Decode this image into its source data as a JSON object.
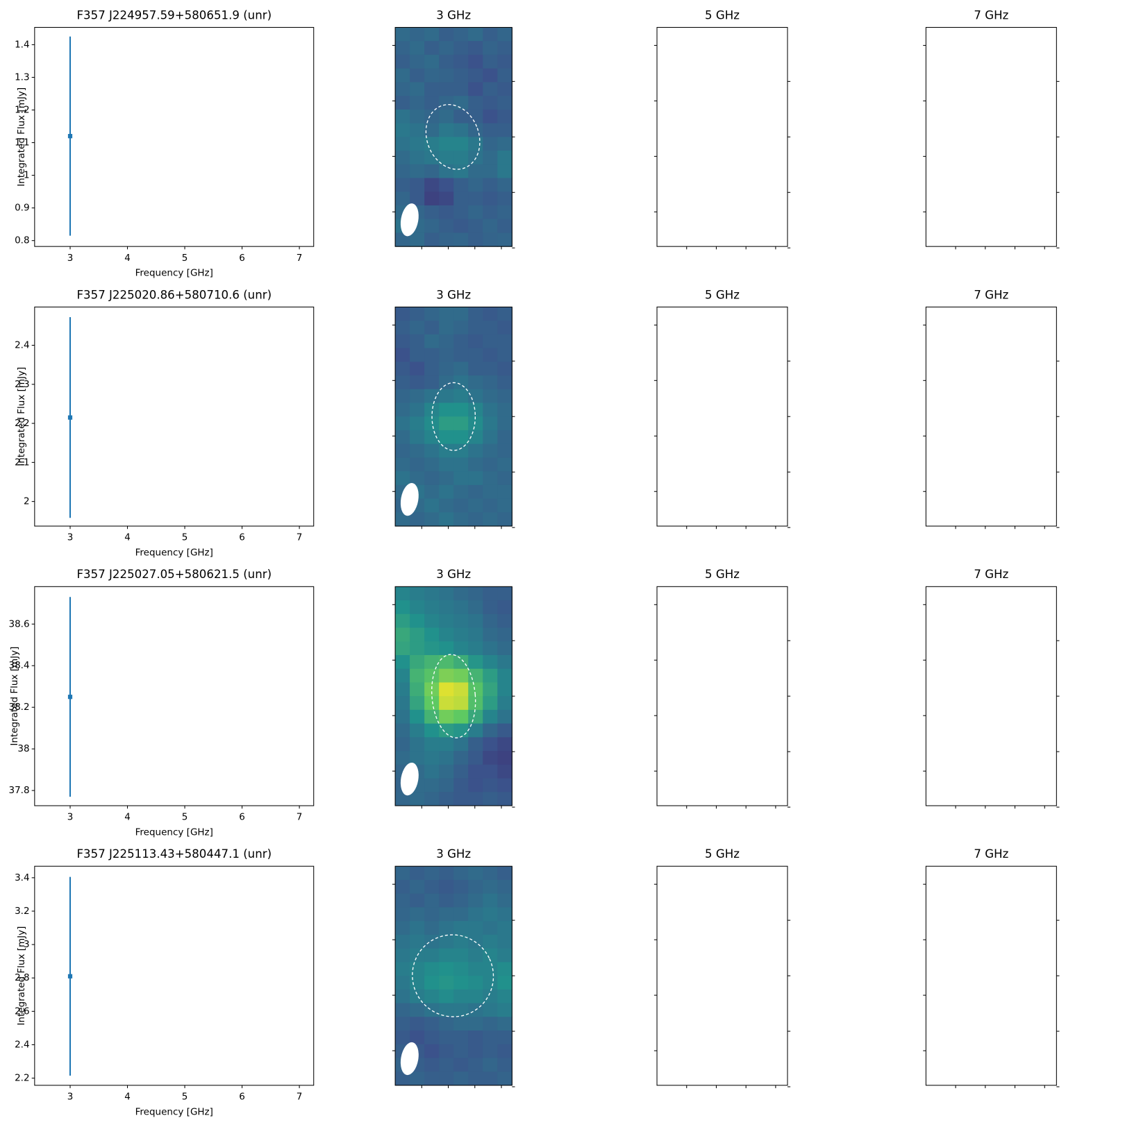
{
  "chart_data": [
    {
      "type": "errorbar",
      "title": "F357 J224957.59+580651.9 (unr)",
      "xlabel": "Frequency [GHz]",
      "ylabel": "Integrated Flux [mJy]",
      "color": "#1f77b4",
      "x": [
        3
      ],
      "values": [
        1.12
      ],
      "errors": [
        0.305
      ],
      "xlim": [
        2.38,
        7.25
      ],
      "ylim": [
        0.782,
        1.453
      ],
      "xticks": [
        3,
        4,
        5,
        6,
        7
      ],
      "yticks": [
        0.8,
        0.9,
        1.0,
        1.1,
        1.2,
        1.3,
        1.4
      ],
      "panels": [
        {
          "type": "heatmap",
          "title": "3 GHz",
          "image": [
            [
              0.35,
              0.33,
              0.35,
              0.3,
              0.32,
              0.35,
              0.3,
              0.33
            ],
            [
              0.32,
              0.35,
              0.3,
              0.33,
              0.3,
              0.28,
              0.32,
              0.3
            ],
            [
              0.3,
              0.33,
              0.35,
              0.3,
              0.28,
              0.25,
              0.3,
              0.28
            ],
            [
              0.35,
              0.3,
              0.33,
              0.32,
              0.3,
              0.28,
              0.25,
              0.3
            ],
            [
              0.33,
              0.35,
              0.3,
              0.3,
              0.3,
              0.25,
              0.3,
              0.28
            ],
            [
              0.3,
              0.33,
              0.3,
              0.33,
              0.35,
              0.3,
              0.28,
              0.3
            ],
            [
              0.38,
              0.35,
              0.33,
              0.35,
              0.3,
              0.3,
              0.25,
              0.28
            ],
            [
              0.4,
              0.38,
              0.35,
              0.4,
              0.38,
              0.33,
              0.3,
              0.3
            ],
            [
              0.38,
              0.4,
              0.42,
              0.45,
              0.45,
              0.4,
              0.33,
              0.35
            ],
            [
              0.35,
              0.38,
              0.4,
              0.42,
              0.42,
              0.38,
              0.35,
              0.4
            ],
            [
              0.33,
              0.35,
              0.33,
              0.38,
              0.4,
              0.35,
              0.35,
              0.4
            ],
            [
              0.3,
              0.28,
              0.22,
              0.25,
              0.3,
              0.33,
              0.3,
              0.33
            ],
            [
              0.33,
              0.28,
              0.2,
              0.22,
              0.3,
              0.3,
              0.28,
              0.3
            ],
            [
              0.35,
              0.33,
              0.3,
              0.28,
              0.3,
              0.33,
              0.3,
              0.32
            ],
            [
              0.38,
              0.35,
              0.33,
              0.3,
              0.28,
              0.3,
              0.33,
              0.3
            ],
            [
              0.33,
              0.35,
              0.3,
              0.32,
              0.33,
              0.3,
              0.32,
              0.33
            ]
          ]
        },
        {
          "type": "empty",
          "title": "5 GHz"
        },
        {
          "type": "empty",
          "title": "7 GHz"
        }
      ]
    },
    {
      "type": "errorbar",
      "title": "F357 J225020.86+580710.6 (unr)",
      "xlabel": "Frequency [GHz]",
      "ylabel": "Integrated Flux [mJy]",
      "color": "#1f77b4",
      "x": [
        3
      ],
      "values": [
        2.215
      ],
      "errors": [
        0.257
      ],
      "xlim": [
        2.38,
        7.25
      ],
      "ylim": [
        1.937,
        2.498
      ],
      "xticks": [
        3,
        4,
        5,
        6,
        7
      ],
      "yticks": [
        2.0,
        2.1,
        2.2,
        2.3,
        2.4
      ],
      "panels": [
        {
          "type": "heatmap",
          "title": "3 GHz",
          "image": [
            [
              0.28,
              0.3,
              0.33,
              0.35,
              0.35,
              0.3,
              0.28,
              0.3
            ],
            [
              0.3,
              0.33,
              0.3,
              0.35,
              0.33,
              0.3,
              0.3,
              0.28
            ],
            [
              0.28,
              0.3,
              0.35,
              0.33,
              0.3,
              0.28,
              0.3,
              0.3
            ],
            [
              0.25,
              0.3,
              0.3,
              0.32,
              0.3,
              0.3,
              0.28,
              0.3
            ],
            [
              0.28,
              0.25,
              0.3,
              0.33,
              0.35,
              0.3,
              0.3,
              0.28
            ],
            [
              0.3,
              0.28,
              0.3,
              0.35,
              0.38,
              0.35,
              0.33,
              0.3
            ],
            [
              0.33,
              0.35,
              0.38,
              0.4,
              0.42,
              0.38,
              0.35,
              0.33
            ],
            [
              0.35,
              0.38,
              0.45,
              0.5,
              0.5,
              0.45,
              0.38,
              0.35
            ],
            [
              0.38,
              0.42,
              0.48,
              0.55,
              0.55,
              0.48,
              0.4,
              0.35
            ],
            [
              0.35,
              0.4,
              0.45,
              0.5,
              0.5,
              0.45,
              0.38,
              0.33
            ],
            [
              0.33,
              0.35,
              0.38,
              0.42,
              0.42,
              0.38,
              0.35,
              0.33
            ],
            [
              0.35,
              0.33,
              0.35,
              0.38,
              0.38,
              0.35,
              0.33,
              0.35
            ],
            [
              0.38,
              0.35,
              0.33,
              0.35,
              0.38,
              0.38,
              0.35,
              0.33
            ],
            [
              0.35,
              0.38,
              0.35,
              0.38,
              0.35,
              0.33,
              0.35,
              0.35
            ],
            [
              0.33,
              0.35,
              0.38,
              0.35,
              0.33,
              0.35,
              0.33,
              0.35
            ],
            [
              0.35,
              0.33,
              0.35,
              0.38,
              0.35,
              0.33,
              0.35,
              0.33
            ]
          ]
        },
        {
          "type": "empty",
          "title": "5 GHz"
        },
        {
          "type": "empty",
          "title": "7 GHz"
        }
      ]
    },
    {
      "type": "errorbar",
      "title": "F357 J225027.05+580621.5 (unr)",
      "xlabel": "Frequency [GHz]",
      "ylabel": "Integrated Flux [mJy]",
      "color": "#1f77b4",
      "x": [
        3
      ],
      "values": [
        38.25
      ],
      "errors": [
        0.48
      ],
      "xlim": [
        2.38,
        7.25
      ],
      "ylim": [
        37.727,
        38.78
      ],
      "xticks": [
        3,
        4,
        5,
        6,
        7
      ],
      "yticks": [
        37.8,
        38.0,
        38.2,
        38.4,
        38.6
      ],
      "panels": [
        {
          "type": "heatmap",
          "title": "3 GHz",
          "image": [
            [
              0.45,
              0.42,
              0.4,
              0.38,
              0.35,
              0.33,
              0.3,
              0.3
            ],
            [
              0.5,
              0.45,
              0.42,
              0.4,
              0.38,
              0.35,
              0.3,
              0.28
            ],
            [
              0.55,
              0.5,
              0.45,
              0.42,
              0.4,
              0.38,
              0.33,
              0.3
            ],
            [
              0.6,
              0.55,
              0.5,
              0.45,
              0.42,
              0.4,
              0.35,
              0.33
            ],
            [
              0.58,
              0.55,
              0.52,
              0.5,
              0.45,
              0.42,
              0.38,
              0.35
            ],
            [
              0.5,
              0.6,
              0.65,
              0.68,
              0.62,
              0.52,
              0.45,
              0.4
            ],
            [
              0.45,
              0.65,
              0.72,
              0.8,
              0.78,
              0.65,
              0.55,
              0.45
            ],
            [
              0.42,
              0.62,
              0.78,
              0.95,
              0.92,
              0.72,
              0.58,
              0.45
            ],
            [
              0.4,
              0.58,
              0.75,
              0.92,
              0.9,
              0.7,
              0.55,
              0.42
            ],
            [
              0.38,
              0.5,
              0.65,
              0.78,
              0.75,
              0.6,
              0.45,
              0.38
            ],
            [
              0.35,
              0.42,
              0.5,
              0.55,
              0.52,
              0.42,
              0.33,
              0.28
            ],
            [
              0.33,
              0.38,
              0.42,
              0.42,
              0.38,
              0.3,
              0.25,
              0.22
            ],
            [
              0.35,
              0.38,
              0.4,
              0.38,
              0.33,
              0.28,
              0.22,
              0.2
            ],
            [
              0.33,
              0.35,
              0.38,
              0.35,
              0.3,
              0.25,
              0.25,
              0.22
            ],
            [
              0.32,
              0.35,
              0.35,
              0.33,
              0.28,
              0.25,
              0.27,
              0.25
            ],
            [
              0.33,
              0.35,
              0.33,
              0.3,
              0.28,
              0.28,
              0.3,
              0.28
            ]
          ]
        },
        {
          "type": "empty",
          "title": "5 GHz"
        },
        {
          "type": "empty",
          "title": "7 GHz"
        }
      ]
    },
    {
      "type": "errorbar",
      "title": "F357 J225113.43+580447.1 (unr)",
      "xlabel": "Frequency [GHz]",
      "ylabel": "Integrated Flux [mJy]",
      "color": "#1f77b4",
      "x": [
        3
      ],
      "values": [
        2.81
      ],
      "errors": [
        0.595
      ],
      "xlim": [
        2.38,
        7.25
      ],
      "ylim": [
        2.157,
        3.469
      ],
      "xticks": [
        3,
        4,
        5,
        6,
        7
      ],
      "yticks": [
        2.2,
        2.4,
        2.6,
        2.8,
        3.0,
        3.2,
        3.4
      ],
      "panels": [
        {
          "type": "heatmap",
          "title": "3 GHz",
          "image": [
            [
              0.33,
              0.3,
              0.32,
              0.3,
              0.33,
              0.35,
              0.33,
              0.3
            ],
            [
              0.3,
              0.33,
              0.3,
              0.28,
              0.3,
              0.33,
              0.35,
              0.33
            ],
            [
              0.32,
              0.3,
              0.33,
              0.3,
              0.32,
              0.35,
              0.38,
              0.35
            ],
            [
              0.33,
              0.35,
              0.33,
              0.35,
              0.35,
              0.38,
              0.4,
              0.38
            ],
            [
              0.35,
              0.38,
              0.35,
              0.38,
              0.4,
              0.4,
              0.38,
              0.4
            ],
            [
              0.38,
              0.4,
              0.38,
              0.4,
              0.42,
              0.4,
              0.42,
              0.4
            ],
            [
              0.4,
              0.42,
              0.42,
              0.45,
              0.45,
              0.42,
              0.45,
              0.42
            ],
            [
              0.42,
              0.45,
              0.48,
              0.5,
              0.48,
              0.45,
              0.45,
              0.48
            ],
            [
              0.4,
              0.45,
              0.5,
              0.52,
              0.5,
              0.48,
              0.45,
              0.5
            ],
            [
              0.38,
              0.42,
              0.45,
              0.48,
              0.45,
              0.45,
              0.42,
              0.45
            ],
            [
              0.33,
              0.35,
              0.38,
              0.4,
              0.4,
              0.38,
              0.4,
              0.42
            ],
            [
              0.3,
              0.28,
              0.3,
              0.33,
              0.35,
              0.35,
              0.33,
              0.35
            ],
            [
              0.28,
              0.25,
              0.28,
              0.3,
              0.3,
              0.28,
              0.3,
              0.3
            ],
            [
              0.3,
              0.28,
              0.25,
              0.28,
              0.3,
              0.28,
              0.3,
              0.28
            ],
            [
              0.32,
              0.3,
              0.28,
              0.3,
              0.28,
              0.3,
              0.33,
              0.3
            ],
            [
              0.3,
              0.32,
              0.3,
              0.3,
              0.32,
              0.3,
              0.3,
              0.32
            ]
          ]
        },
        {
          "type": "empty",
          "title": "5 GHz"
        },
        {
          "type": "empty",
          "title": "7 GHz"
        }
      ]
    }
  ]
}
